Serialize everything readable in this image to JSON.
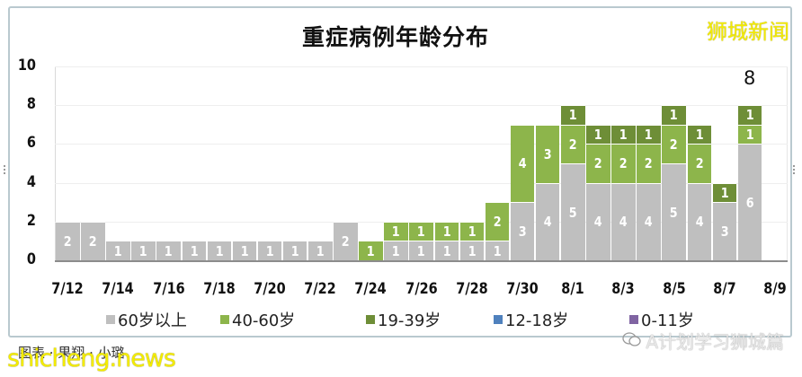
{
  "chart_data": {
    "type": "bar",
    "stacked": true,
    "title": "重症病例年龄分布",
    "xlabel": "",
    "ylabel": "",
    "ylim": [
      0,
      10
    ],
    "yticks": [
      0,
      2,
      4,
      6,
      8,
      10
    ],
    "grid": true,
    "legend_position": "bottom",
    "categories": [
      "7/12",
      "7/13",
      "7/14",
      "7/15",
      "7/16",
      "7/17",
      "7/18",
      "7/19",
      "7/20",
      "7/21",
      "7/22",
      "7/23",
      "7/24",
      "7/25",
      "7/26",
      "7/27",
      "7/28",
      "7/29",
      "7/30",
      "7/31",
      "8/1",
      "8/2",
      "8/3",
      "8/4",
      "8/5",
      "8/6",
      "8/7",
      "8/8"
    ],
    "xtick_labels": [
      "7/12",
      "7/14",
      "7/16",
      "7/18",
      "7/20",
      "7/22",
      "7/24",
      "7/26",
      "7/28",
      "7/30",
      "8/1",
      "8/3",
      "8/5",
      "8/7",
      "8/9"
    ],
    "series": [
      {
        "name": "60岁以上",
        "color": "#bfbfbf",
        "values": [
          2,
          2,
          1,
          1,
          1,
          1,
          1,
          1,
          1,
          1,
          1,
          2,
          0,
          1,
          1,
          1,
          1,
          1,
          3,
          4,
          5,
          4,
          4,
          4,
          5,
          4,
          3,
          6
        ]
      },
      {
        "name": "40-60岁",
        "color": "#8db54b",
        "values": [
          0,
          0,
          0,
          0,
          0,
          0,
          0,
          0,
          0,
          0,
          0,
          0,
          1,
          1,
          1,
          1,
          1,
          2,
          4,
          3,
          2,
          2,
          2,
          2,
          2,
          2,
          0,
          1
        ]
      },
      {
        "name": "19-39岁",
        "color": "#6e8e37",
        "values": [
          0,
          0,
          0,
          0,
          0,
          0,
          0,
          0,
          0,
          0,
          0,
          0,
          0,
          0,
          0,
          0,
          0,
          0,
          0,
          0,
          1,
          1,
          1,
          1,
          1,
          1,
          1,
          1
        ]
      },
      {
        "name": "12-18岁",
        "color": "#4f81bd",
        "values": [
          0,
          0,
          0,
          0,
          0,
          0,
          0,
          0,
          0,
          0,
          0,
          0,
          0,
          0,
          0,
          0,
          0,
          0,
          0,
          0,
          0,
          0,
          0,
          0,
          0,
          0,
          0,
          0
        ]
      },
      {
        "name": "0-11岁",
        "color": "#8064a2",
        "values": [
          0,
          0,
          0,
          0,
          0,
          0,
          0,
          0,
          0,
          0,
          0,
          0,
          0,
          0,
          0,
          0,
          0,
          0,
          0,
          0,
          0,
          0,
          0,
          0,
          0,
          0,
          0,
          0
        ]
      }
    ],
    "annotations": [
      {
        "category": "8/8",
        "text": "8"
      }
    ]
  },
  "header": {
    "brand": "狮城新闻"
  },
  "footer": {
    "credit": "图表 · 果翔 · 小璐",
    "watermark": "shicheng.news",
    "wechat_source": "A计划学习狮城篇"
  }
}
